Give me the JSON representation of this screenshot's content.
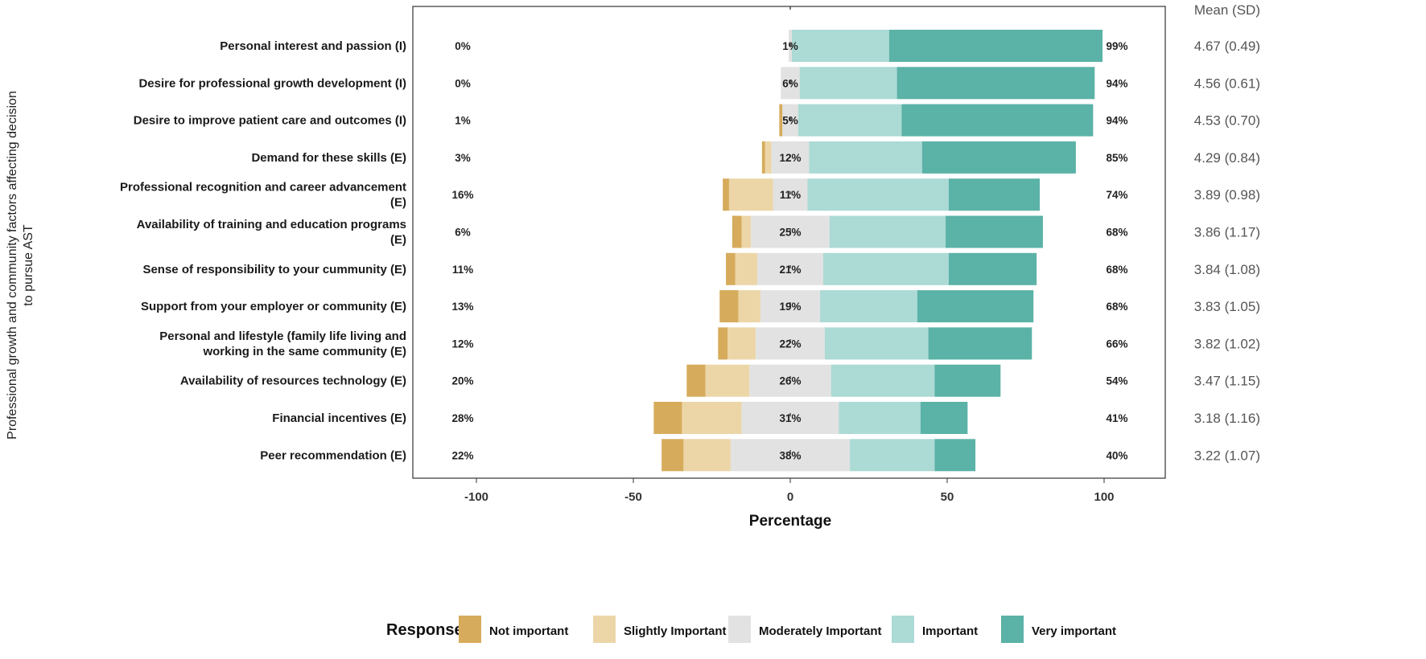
{
  "chart_data": {
    "type": "bar",
    "subtype": "diverging-stacked",
    "ylabel": "Professional growth and community factors affecting decision to pursue AST",
    "xlabel": "Percentage",
    "xlim": [
      -120,
      120
    ],
    "xticks": [
      -100,
      -50,
      0,
      50,
      100
    ],
    "xtick_labels": [
      "-100",
      "-50",
      "0",
      "50",
      "100"
    ],
    "mean_header": "Mean (SD)",
    "legend": {
      "title": "Response",
      "placement": "bottom",
      "entries": [
        "Not important",
        "Slightly Important",
        "Moderately Important",
        "Important",
        "Very important"
      ]
    },
    "colors": [
      "#d6ab5b",
      "#ecd6a8",
      "#e2e2e2",
      "#acdad5",
      "#5bb2a7"
    ],
    "categories": [
      [
        "Personal interest and passion (I)"
      ],
      [
        "Desire for professional growth development (I)"
      ],
      [
        "Desire to improve patient care and outcomes (I)"
      ],
      [
        "Demand for these skills (E)"
      ],
      [
        "Professional recognition and career advancement",
        "(E)"
      ],
      [
        "Availability of training and education programs",
        "(E)"
      ],
      [
        "Sense of responsibility to your cummunity (E)"
      ],
      [
        "Support from your employer or community (E)"
      ],
      [
        "Personal and lifestyle (family life living and",
        "working in the same community (E)"
      ],
      [
        "Availability of resources technology (E)"
      ],
      [
        "Financial incentives (E)"
      ],
      [
        "Peer recommendation (E)"
      ]
    ],
    "series": [
      {
        "name": "Not important",
        "values": [
          0,
          0,
          1,
          1,
          2,
          3,
          3,
          6,
          3,
          6,
          9,
          7
        ]
      },
      {
        "name": "Slightly Important",
        "values": [
          0,
          0,
          0,
          2,
          14,
          3,
          7,
          7,
          9,
          14,
          19,
          15
        ]
      },
      {
        "name": "Moderately Important",
        "values": [
          1,
          6,
          5,
          12,
          11,
          25,
          21,
          19,
          22,
          26,
          31,
          38
        ]
      },
      {
        "name": "Important",
        "values": [
          31,
          31,
          33,
          36,
          45,
          37,
          40,
          31,
          33,
          33,
          26,
          27
        ]
      },
      {
        "name": "Very important",
        "values": [
          68,
          63,
          61,
          49,
          29,
          31,
          28,
          37,
          33,
          21,
          15,
          13
        ]
      }
    ],
    "left_labels": [
      "0%",
      "0%",
      "1%",
      "3%",
      "16%",
      "6%",
      "11%",
      "13%",
      "12%",
      "20%",
      "28%",
      "22%"
    ],
    "center_labels": [
      "1%",
      "6%",
      "5%",
      "12%",
      "11%",
      "25%",
      "21%",
      "19%",
      "22%",
      "26%",
      "31%",
      "38%"
    ],
    "right_labels": [
      "99%",
      "94%",
      "94%",
      "85%",
      "74%",
      "68%",
      "68%",
      "68%",
      "66%",
      "54%",
      "41%",
      "40%"
    ],
    "means": [
      "4.67 (0.49)",
      "4.56 (0.61)",
      "4.53 (0.70)",
      "4.29 (0.84)",
      "3.89 (0.98)",
      "3.86 (1.17)",
      "3.84 (1.08)",
      "3.83 (1.05)",
      "3.82 (1.02)",
      "3.47 (1.15)",
      "3.18 (1.16)",
      "3.22 (1.07)"
    ]
  }
}
